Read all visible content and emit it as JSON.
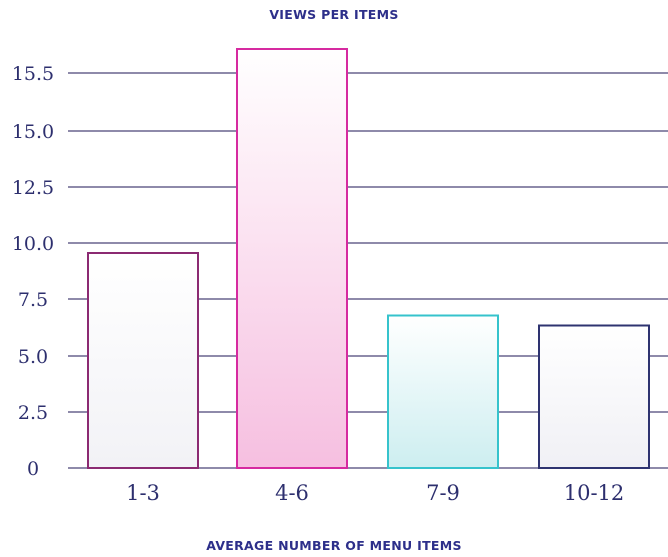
{
  "chart_data": {
    "type": "bar",
    "title": "VIEWS PER ITEMS",
    "xlabel": "AVERAGE NUMBER OF MENU ITEMS",
    "ylabel": "",
    "categories": [
      "1-3",
      "4-6",
      "7-9",
      "10-12"
    ],
    "values": [
      8.6,
      17.6,
      6.1,
      5.7
    ],
    "ylim": [
      0,
      18
    ],
    "yticks": [
      0,
      2.5,
      5.0,
      7.5,
      10.0,
      12.5,
      15.0,
      15.5
    ],
    "ytick_labels": [
      "0",
      "2.5",
      "5.0",
      "7.5",
      "10.0",
      "12.5",
      "15.0",
      "15.5"
    ],
    "grid": true,
    "legend": "none",
    "bar_colors": [
      "#8b2a72",
      "#d62aa0",
      "#36c3cc",
      "#2e3370"
    ],
    "bar_fills": [
      "#f2f2f6",
      "#f6bfe0",
      "#cdeef0",
      "#f0f0f5"
    ]
  },
  "colors": {
    "title": "#2d2f8a",
    "axis_text": "#2d2f6e",
    "gridline": "#4a4478"
  }
}
